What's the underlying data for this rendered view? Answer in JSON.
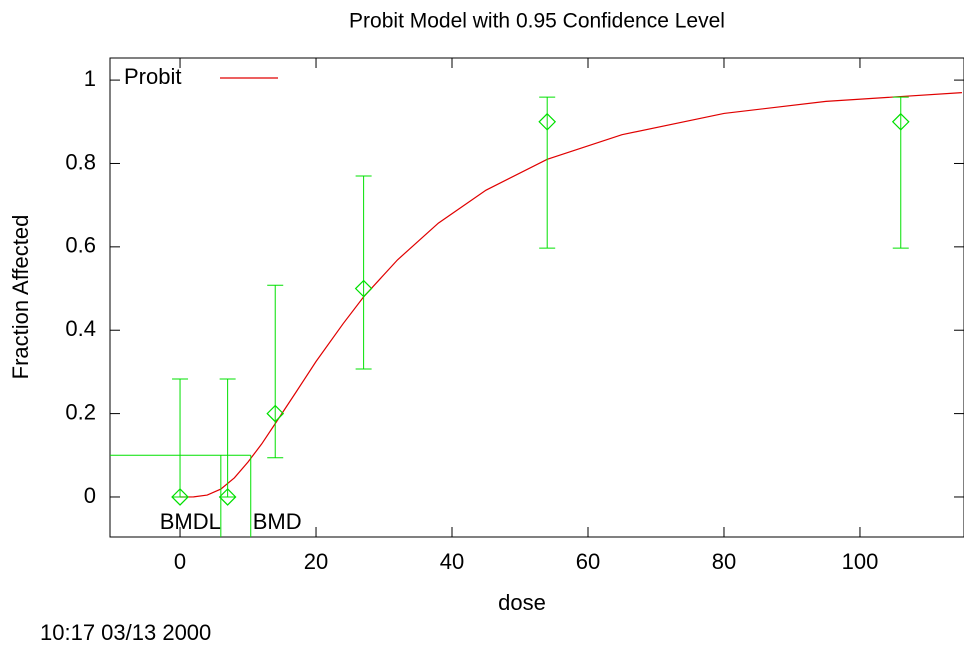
{
  "chart_data": {
    "type": "line",
    "title": "Probit Model with 0.95 Confidence Level",
    "xlabel": "dose",
    "ylabel": "Fraction Affected",
    "timestamp": "10:17 03/13 2000",
    "xlim": [
      -10.3,
      115.3
    ],
    "ylim": [
      -0.096,
      1.053
    ],
    "xticks": [
      0,
      20,
      40,
      60,
      80,
      100
    ],
    "yticks": [
      0,
      0.2,
      0.4,
      0.6,
      0.8,
      1
    ],
    "legend": "upper left",
    "series": [
      {
        "name": "Probit",
        "color": "#e00000",
        "x": [
          0,
          2,
          4,
          6,
          8,
          10,
          12,
          14,
          17,
          20,
          24,
          27,
          32,
          38,
          45,
          54,
          65,
          80,
          95,
          115
        ],
        "values": [
          0,
          0.0002,
          0.0045,
          0.019,
          0.046,
          0.084,
          0.127,
          0.176,
          0.25,
          0.325,
          0.416,
          0.48,
          0.569,
          0.657,
          0.736,
          0.81,
          0.869,
          0.92,
          0.949,
          0.97
        ]
      }
    ],
    "points": {
      "color": "#00e000",
      "x": [
        0,
        7,
        14,
        27,
        54,
        106
      ],
      "values": [
        0,
        0,
        0.2,
        0.5,
        0.9,
        0.9
      ],
      "lower": [
        0,
        0,
        0.094,
        0.307,
        0.597,
        0.597
      ],
      "upper": [
        0.283,
        0.283,
        0.508,
        0.77,
        0.959,
        0.959
      ]
    },
    "bmr": 0.1,
    "bmd": {
      "value": 10.4,
      "label": "BMD"
    },
    "bmdl": {
      "value": 6.0,
      "label": "BMDL"
    }
  }
}
